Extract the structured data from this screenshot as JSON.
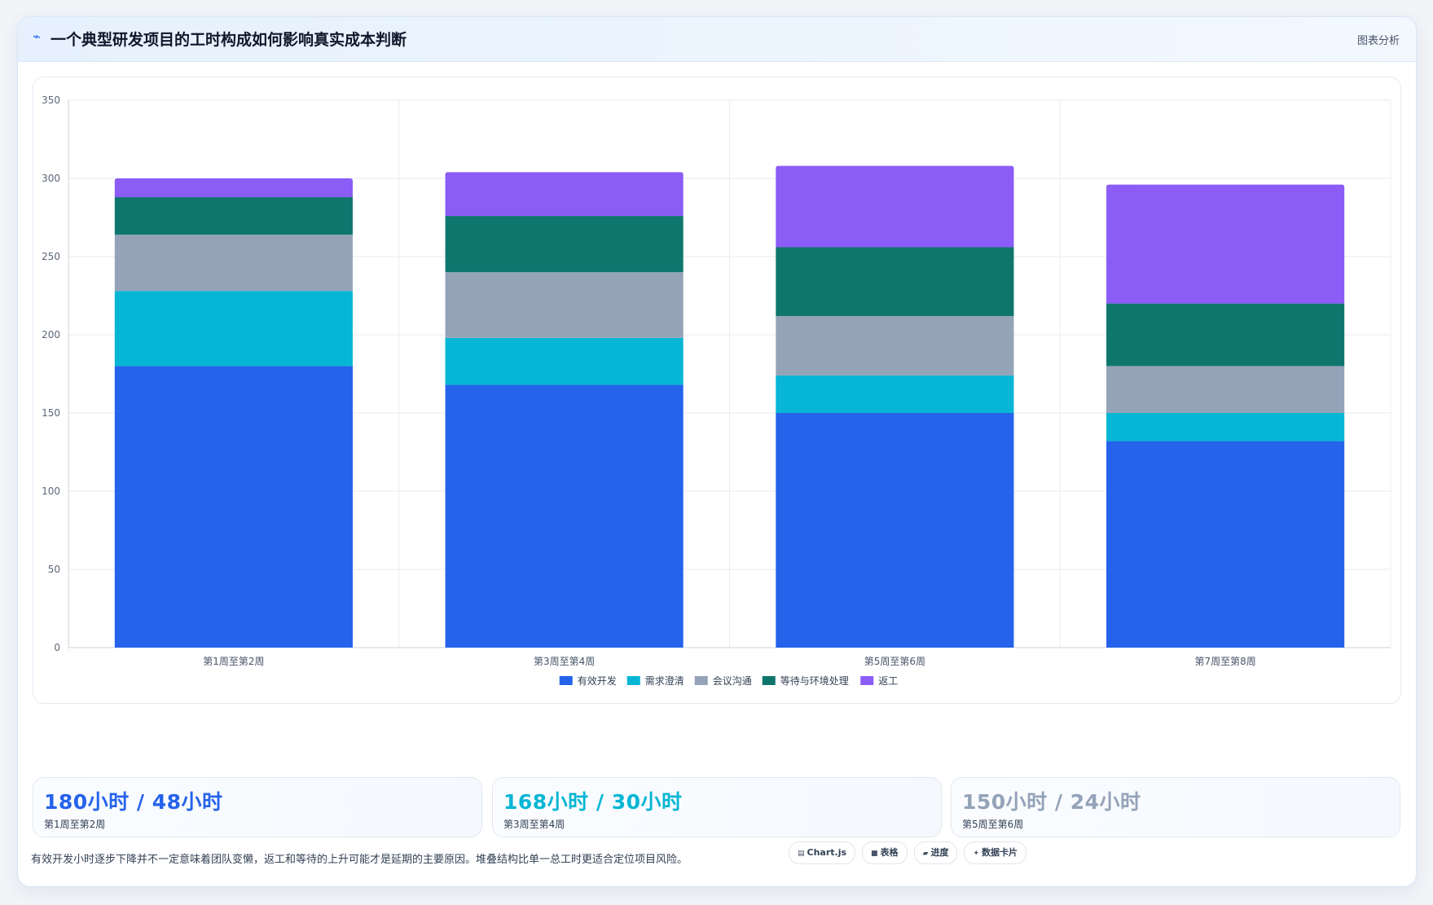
{
  "header": {
    "icon": "line-chart-icon",
    "title": "一个典型研发项目的工时构成如何影响真实成本判断",
    "tag": "图表分析"
  },
  "chart_data": {
    "type": "bar",
    "stacked": true,
    "categories": [
      "第1周至第2周",
      "第3周至第4周",
      "第5周至第6周",
      "第7周至第8周"
    ],
    "series": [
      {
        "name": "有效开发",
        "color": "#2563eb",
        "values": [
          180,
          168,
          150,
          132
        ]
      },
      {
        "name": "需求澄清",
        "color": "#06b6d4",
        "values": [
          48,
          30,
          24,
          18
        ]
      },
      {
        "name": "会议沟通",
        "color": "#94a3b8",
        "values": [
          36,
          42,
          38,
          30
        ]
      },
      {
        "name": "等待与环境处理",
        "color": "#0f766e",
        "values": [
          24,
          36,
          44,
          40
        ]
      },
      {
        "name": "返工",
        "color": "#8b5cf6",
        "values": [
          12,
          28,
          52,
          76
        ]
      }
    ],
    "ylim": [
      0,
      350
    ],
    "yticks": [
      0,
      50,
      100,
      150,
      200,
      250,
      300,
      350
    ],
    "grid": true,
    "legend": "bottom"
  },
  "stats": [
    {
      "value": "180小时 / 48小时",
      "label": "第1周至第2周",
      "color": "#2563eb"
    },
    {
      "value": "168小时 / 30小时",
      "label": "第3周至第4周",
      "color": "#06b6d4"
    },
    {
      "value": "150小时 / 24小时",
      "label": "第5周至第6周",
      "color": "#94a3b8"
    }
  ],
  "note": "有效开发小时逐步下降并不一定意味着团队变懒，返工和等待的上升可能才是延期的主要原因。堆叠结构比单一总工时更适合定位项目风险。",
  "chips": [
    {
      "icon": "chart-icon",
      "glyph": "▤",
      "label": "Chart.js"
    },
    {
      "icon": "table-icon",
      "glyph": "■",
      "label": "表格"
    },
    {
      "icon": "progress-icon",
      "glyph": "▰",
      "label": "进度"
    },
    {
      "icon": "sparkle-icon",
      "glyph": "✦",
      "label": "数据卡片"
    }
  ]
}
